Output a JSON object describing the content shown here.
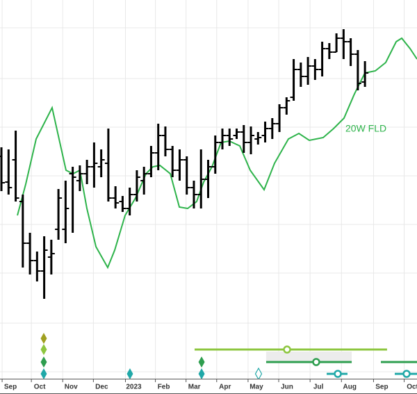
{
  "chart_data": {
    "type": "ohlc",
    "color": "#000000",
    "x": [
      0,
      1,
      2,
      3,
      4,
      5,
      6,
      7,
      8,
      9,
      10,
      11,
      12,
      13,
      14,
      15,
      16,
      17,
      18,
      19,
      20,
      21,
      22,
      23,
      24,
      25,
      26,
      27,
      28,
      29,
      30,
      31,
      32,
      33,
      34,
      35,
      36,
      37,
      38,
      39,
      40,
      41,
      42,
      43,
      44,
      45,
      46,
      47,
      48,
      49,
      50,
      51
    ],
    "open": [
      320,
      283,
      315,
      255,
      195,
      170,
      155,
      175,
      215,
      215,
      295,
      285,
      295,
      305,
      305,
      310,
      260,
      255,
      245,
      265,
      285,
      295,
      325,
      350,
      330,
      300,
      315,
      275,
      265,
      287,
      305,
      340,
      350,
      350,
      355,
      340,
      345,
      350,
      360,
      367,
      390,
      405,
      445,
      435,
      450,
      445,
      475,
      470,
      490,
      485,
      467,
      427
    ],
    "high": [
      333,
      330,
      357,
      265,
      210,
      183,
      205,
      200,
      273,
      285,
      305,
      307,
      315,
      340,
      330,
      360,
      277,
      263,
      275,
      300,
      305,
      335,
      367,
      363,
      335,
      330,
      320,
      285,
      330,
      315,
      350,
      360,
      360,
      360,
      365,
      363,
      355,
      370,
      375,
      395,
      405,
      460,
      455,
      463,
      460,
      485,
      483,
      497,
      503,
      490,
      473,
      457
    ],
    "low": [
      270,
      265,
      255,
      160,
      150,
      140,
      115,
      150,
      200,
      195,
      210,
      270,
      280,
      275,
      290,
      255,
      245,
      240,
      235,
      255,
      265,
      290,
      300,
      320,
      290,
      285,
      265,
      245,
      245,
      260,
      295,
      330,
      335,
      345,
      325,
      323,
      337,
      340,
      345,
      355,
      380,
      400,
      420,
      423,
      430,
      435,
      460,
      470,
      460,
      450,
      415,
      420
    ],
    "close": [
      282,
      275,
      260,
      195,
      170,
      155,
      185,
      180,
      260,
      245,
      290,
      295,
      305,
      310,
      315,
      260,
      253,
      245,
      265,
      290,
      295,
      325,
      350,
      330,
      300,
      315,
      275,
      265,
      287,
      305,
      340,
      350,
      345,
      355,
      340,
      350,
      347,
      360,
      367,
      390,
      400,
      445,
      435,
      450,
      445,
      475,
      470,
      490,
      485,
      467,
      425,
      440
    ],
    "lines": [
      {
        "name": "20W FLD",
        "color": "#2db34a",
        "x": [
          2.24,
          3.41,
          4.87,
          7.11,
          9.06,
          10.04,
          11.01,
          11.99,
          13.26,
          14.91,
          15.89,
          17.35,
          18.81,
          20.28,
          21.25,
          22.23,
          23.69,
          24.96,
          26.13,
          27.39,
          28.37,
          29.54,
          30.81,
          31.98,
          33.44,
          34.9,
          36.85,
          38.31,
          40.26,
          41.73,
          43.19,
          45.14,
          46.6,
          48.06,
          49.53,
          50.99,
          52.45,
          53.91,
          55.38,
          56.16,
          57.33,
          58.3
        ],
        "values": [
          235,
          280,
          345,
          390,
          300,
          295,
          300,
          245,
          190,
          160,
          185,
          235,
          260,
          295,
          305,
          307,
          295,
          247,
          245,
          255,
          283,
          305,
          340,
          342,
          335,
          300,
          272,
          310,
          345,
          353,
          343,
          347,
          360,
          375,
          410,
          440,
          443,
          455,
          485,
          490,
          475,
          460
        ]
      }
    ],
    "xlim": [
      -0.2,
      58.3
    ],
    "ylim": [
      0,
      545
    ],
    "yticks": [
      10,
      80,
      152,
      222,
      292,
      362,
      432,
      505
    ],
    "xticks": [
      {
        "value": 0.1,
        "label": "Sep"
      },
      {
        "value": 4.2,
        "label": "Oct"
      },
      {
        "value": 8.6,
        "label": "Nov"
      },
      {
        "value": 12.9,
        "label": "Dec"
      },
      {
        "value": 17.4,
        "label": "2023"
      },
      {
        "value": 21.6,
        "label": "Feb"
      },
      {
        "value": 25.9,
        "label": "Mar"
      },
      {
        "value": 30.2,
        "label": "Apr"
      },
      {
        "value": 34.6,
        "label": "May"
      },
      {
        "value": 38.9,
        "label": "Jun"
      },
      {
        "value": 43.3,
        "label": "Jul"
      },
      {
        "value": 47.7,
        "label": "Aug"
      },
      {
        "value": 52.2,
        "label": "Sep"
      },
      {
        "value": 56.5,
        "label": "Oct"
      }
    ],
    "grid": true,
    "cycle_rows": [
      {
        "color": "#a0a020",
        "diamonds": [
          5.94
        ],
        "hollow_diamonds": [],
        "ranges": []
      },
      {
        "color": "#8dc63f",
        "diamonds": [
          5.94
        ],
        "hollow_diamonds": [],
        "ranges": [
          {
            "start": 27.1,
            "end": 54.1,
            "center": 40.07
          }
        ]
      },
      {
        "color": "#2e9e4f",
        "diamonds": [
          5.94,
          28.08
        ],
        "hollow_diamonds": [],
        "ranges": [
          {
            "start": 37.14,
            "end": 49.14,
            "center": 44.16,
            "shade": true
          },
          {
            "start": 53.23,
            "end": 58.3
          }
        ]
      },
      {
        "color": "#20a8a8",
        "diamonds": [
          5.94,
          18.03,
          28.08
        ],
        "hollow_diamonds": [
          36.07
        ],
        "ranges": [
          {
            "start": 45.63,
            "end": 48.55,
            "center": 47.19
          },
          {
            "start": 55.18,
            "end": 58.3,
            "center": 56.84
          }
        ]
      }
    ]
  }
}
